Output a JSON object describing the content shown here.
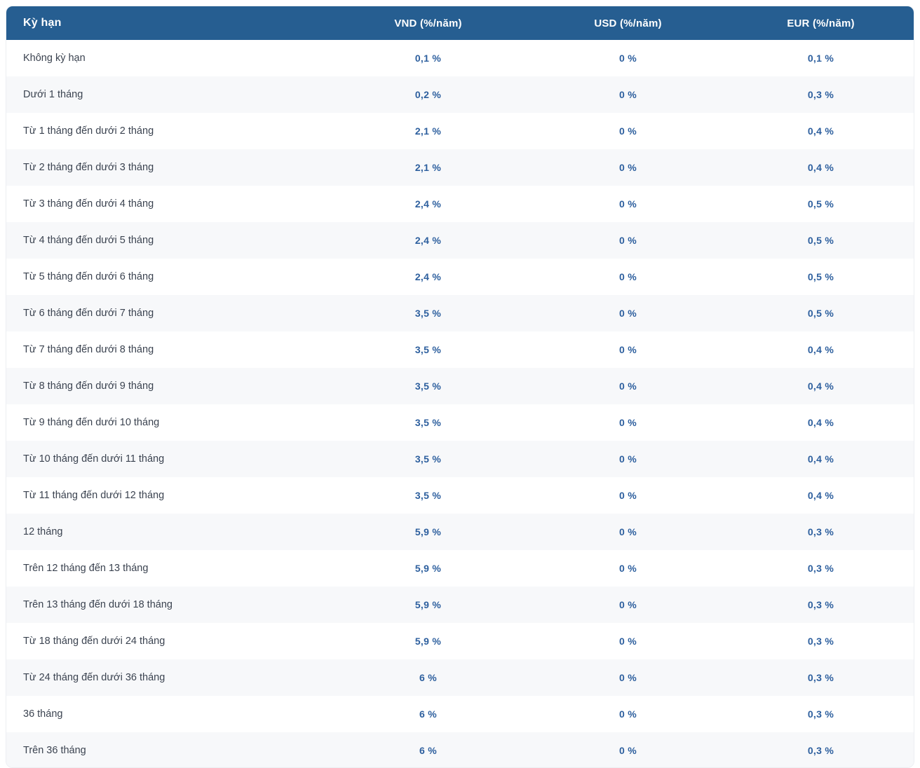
{
  "colors": {
    "header_bg": "#265E91",
    "header_text": "#FFFFFF",
    "value_blue": "#2D5F9E",
    "label_color": "#3B4350",
    "row_alt_bg": "#F7F8FA",
    "card_border": "#ECEEF2",
    "page_bg": "#FFFFFF"
  },
  "table": {
    "columns": [
      {
        "key": "term",
        "label": "Kỳ hạn"
      },
      {
        "key": "vnd",
        "label": "VND (%/năm)"
      },
      {
        "key": "usd",
        "label": "USD (%/năm)"
      },
      {
        "key": "eur",
        "label": "EUR (%/năm)"
      }
    ],
    "rows": [
      {
        "term": "Không kỳ hạn",
        "vnd": "0,1 %",
        "usd": "0 %",
        "eur": "0,1 %"
      },
      {
        "term": "Dưới 1 tháng",
        "vnd": "0,2 %",
        "usd": "0 %",
        "eur": "0,3 %"
      },
      {
        "term": "Từ 1 tháng đến dưới 2 tháng",
        "vnd": "2,1 %",
        "usd": "0 %",
        "eur": "0,4 %"
      },
      {
        "term": "Từ 2 tháng đến dưới 3 tháng",
        "vnd": "2,1 %",
        "usd": "0 %",
        "eur": "0,4 %"
      },
      {
        "term": "Từ 3 tháng đến dưới 4 tháng",
        "vnd": "2,4 %",
        "usd": "0 %",
        "eur": "0,5 %"
      },
      {
        "term": "Từ 4 tháng đến dưới 5 tháng",
        "vnd": "2,4 %",
        "usd": "0 %",
        "eur": "0,5 %"
      },
      {
        "term": "Từ 5 tháng đến dưới 6 tháng",
        "vnd": "2,4 %",
        "usd": "0 %",
        "eur": "0,5 %"
      },
      {
        "term": "Từ 6 tháng đến dưới 7 tháng",
        "vnd": "3,5 %",
        "usd": "0 %",
        "eur": "0,5 %"
      },
      {
        "term": "Từ 7 tháng đến dưới 8 tháng",
        "vnd": "3,5 %",
        "usd": "0 %",
        "eur": "0,4 %"
      },
      {
        "term": "Từ 8 tháng đến dưới 9 tháng",
        "vnd": "3,5 %",
        "usd": "0 %",
        "eur": "0,4 %"
      },
      {
        "term": "Từ 9 tháng đến dưới 10 tháng",
        "vnd": "3,5 %",
        "usd": "0 %",
        "eur": "0,4 %"
      },
      {
        "term": "Từ 10 tháng đến dưới 11 tháng",
        "vnd": "3,5 %",
        "usd": "0 %",
        "eur": "0,4 %"
      },
      {
        "term": "Từ 11 tháng đến dưới 12 tháng",
        "vnd": "3,5 %",
        "usd": "0 %",
        "eur": "0,4 %"
      },
      {
        "term": "12 tháng",
        "vnd": "5,9 %",
        "usd": "0 %",
        "eur": "0,3 %"
      },
      {
        "term": "Trên 12 tháng đến 13 tháng",
        "vnd": "5,9 %",
        "usd": "0 %",
        "eur": "0,3 %"
      },
      {
        "term": "Trên 13 tháng đến dưới 18 tháng",
        "vnd": "5,9 %",
        "usd": "0 %",
        "eur": "0,3 %"
      },
      {
        "term": "Từ 18 tháng đến dưới 24 tháng",
        "vnd": "5,9 %",
        "usd": "0 %",
        "eur": "0,3 %"
      },
      {
        "term": "Từ 24 tháng đến dưới 36 tháng",
        "vnd": "6 %",
        "usd": "0 %",
        "eur": "0,3 %"
      },
      {
        "term": "36 tháng",
        "vnd": "6 %",
        "usd": "0 %",
        "eur": "0,3 %"
      },
      {
        "term": "Trên 36 tháng",
        "vnd": "6 %",
        "usd": "0 %",
        "eur": "0,3 %"
      }
    ]
  }
}
